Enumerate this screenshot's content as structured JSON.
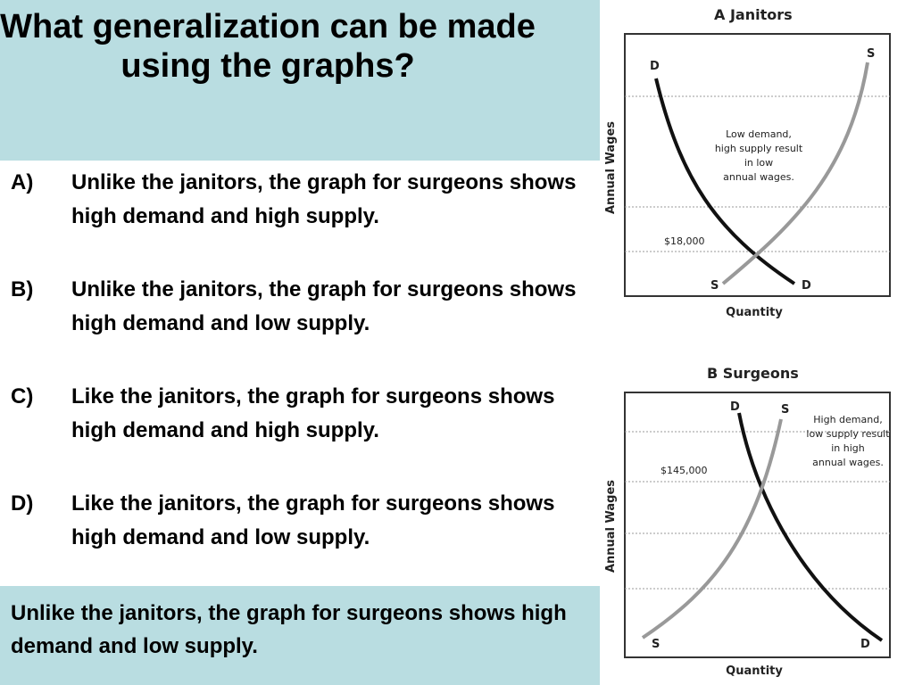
{
  "question": {
    "title": "What generalization can be made using the graphs?",
    "options": [
      {
        "letter": "A)",
        "text": "Unlike the janitors, the graph for surgeons shows high demand and high supply."
      },
      {
        "letter": "B)",
        "text": "Unlike the janitors, the graph for surgeons shows high demand and low supply."
      },
      {
        "letter": "C)",
        "text": "Like the janitors, the graph for surgeons shows high demand and high supply."
      },
      {
        "letter": "D)",
        "text": "Like the janitors, the graph for surgeons shows high demand and low supply."
      }
    ],
    "answer": "Unlike the janitors, the graph for surgeons shows high demand and low supply."
  },
  "graphs": [
    {
      "title": "A  Janitors",
      "y_label": "Annual Wages",
      "x_label": "Quantity",
      "wage": "$18,000",
      "annotation": [
        "Low demand,",
        "high supply result",
        "in low",
        "annual wages."
      ],
      "demand_label": "D",
      "supply_label": "S"
    },
    {
      "title": "B  Surgeons",
      "y_label": "Annual Wages",
      "x_label": "Quantity",
      "wage": "$145,000",
      "annotation": [
        "High demand,",
        "low supply result",
        "in high",
        "annual wages."
      ],
      "demand_label": "D",
      "supply_label": "S"
    }
  ]
}
